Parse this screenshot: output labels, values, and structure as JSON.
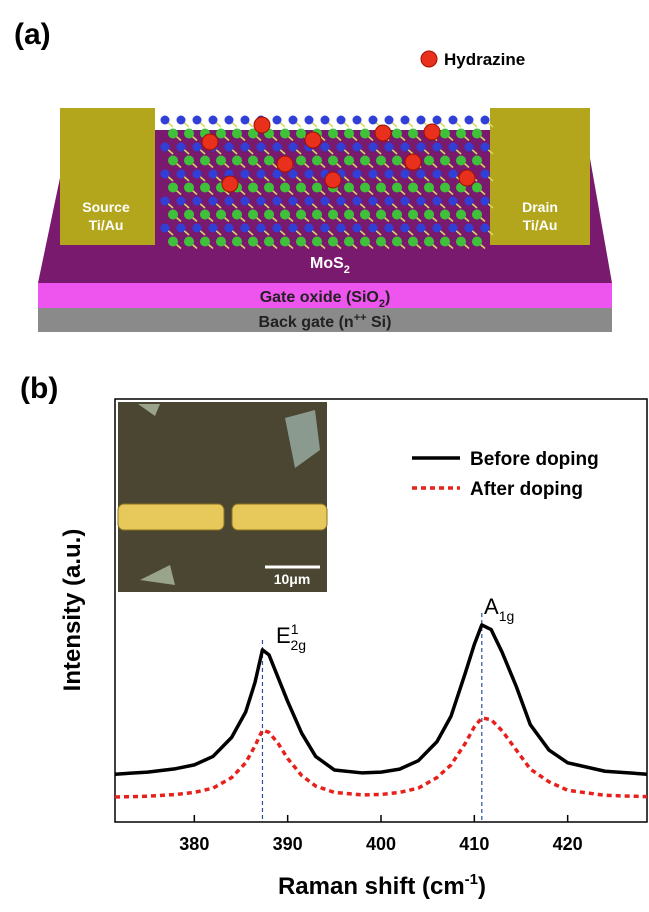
{
  "panel_a": {
    "label": "(a)",
    "legend": "Hydrazine",
    "source": [
      "Source",
      "Ti/Au"
    ],
    "drain": [
      "Drain",
      "Ti/Au"
    ],
    "channel": [
      "MoS",
      "2"
    ],
    "oxide": [
      "Gate oxide (SiO",
      "2",
      ")"
    ],
    "gate": [
      "Back gate (n",
      "++",
      " Si)"
    ]
  },
  "chart_data": {
    "type": "line",
    "panel_label": "(b)",
    "x_label": [
      "Raman shift (cm",
      "-1",
      ")"
    ],
    "y_label": "Intensity (a.u.)",
    "x": [
      371.5,
      375,
      378,
      380,
      382,
      384,
      385.5,
      386.5,
      387.3,
      388,
      389,
      390,
      391.5,
      393,
      395,
      398,
      400,
      402,
      404,
      406,
      407.5,
      409,
      410,
      410.8,
      411.8,
      413,
      414.5,
      416,
      418,
      420,
      424,
      428.5
    ],
    "series": [
      {
        "name": "Before doping",
        "color": "#000000",
        "style": "solid",
        "values": [
          11.3,
          11.8,
          12.6,
          13.5,
          15.5,
          20,
          26,
          33,
          40.7,
          39.5,
          34,
          28.5,
          21,
          15.5,
          12.3,
          11.6,
          11.8,
          12.5,
          14.5,
          19,
          25,
          35,
          42,
          46.6,
          45.5,
          40,
          32,
          23,
          17,
          14,
          12,
          11.3
        ]
      },
      {
        "name": "After doping",
        "color": "#e8201c",
        "style": "dotted",
        "values": [
          5.9,
          6.1,
          6.5,
          7,
          8,
          10.5,
          14,
          18,
          21.7,
          21.2,
          18.5,
          15,
          11,
          8.5,
          7,
          6.4,
          6.5,
          7,
          8,
          10.5,
          13.5,
          18.5,
          22.5,
          24.6,
          24.2,
          21.5,
          17,
          12.5,
          9.5,
          7.5,
          6.3,
          6
        ]
      }
    ],
    "xlim": [
      371.5,
      428.5
    ],
    "xticks": [
      380,
      390,
      400,
      410,
      420
    ],
    "ylim": [
      0,
      100
    ],
    "legend": "upper right",
    "peak_lines": [
      387.3,
      410.8
    ],
    "peak_line_color": "#2a4f9a",
    "peak_labels": [
      [
        "E",
        "1",
        "2g"
      ],
      [
        "A",
        "1g"
      ]
    ],
    "inset_scale": "10μm"
  }
}
